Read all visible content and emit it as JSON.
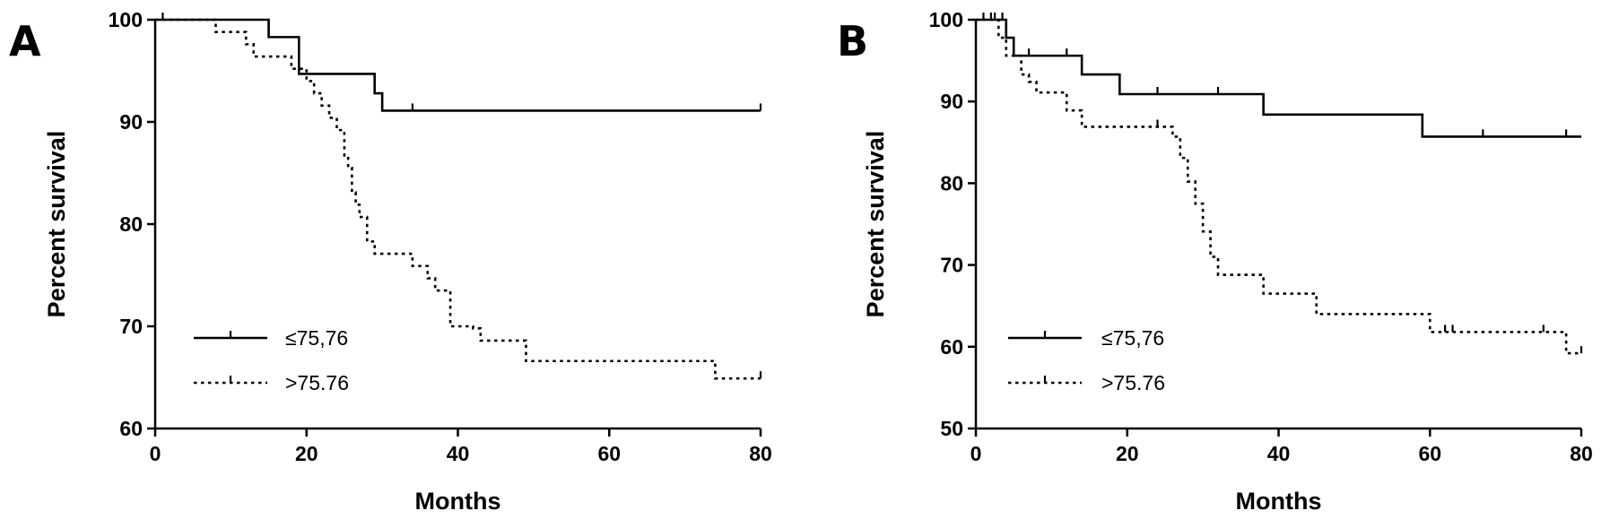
{
  "chart_data": [
    {
      "type": "line",
      "panel_label": "A",
      "xlabel": "Months",
      "ylabel": "Percent survival",
      "xlim": [
        0,
        80
      ],
      "ylim": [
        60,
        100
      ],
      "xticks": [
        0,
        20,
        40,
        60,
        80
      ],
      "yticks": [
        60,
        70,
        80,
        90,
        100
      ],
      "legend_position": "lower-left",
      "series": [
        {
          "name": "≤75,76",
          "line_style": "solid",
          "steps": [
            [
              0,
              100
            ],
            [
              15,
              98.3
            ],
            [
              19,
              94.7
            ],
            [
              29,
              92.8
            ],
            [
              30,
              91.1
            ],
            [
              80,
              91.1
            ]
          ],
          "censored": [
            [
              1,
              100
            ],
            [
              34,
              91.1
            ],
            [
              80,
              91.1
            ]
          ]
        },
        {
          "name": ">75.76",
          "line_style": "dotted",
          "steps": [
            [
              0,
              100
            ],
            [
              8,
              98.8
            ],
            [
              12,
              97.6
            ],
            [
              13,
              96.4
            ],
            [
              18,
              95.2
            ],
            [
              20,
              94.0
            ],
            [
              21,
              92.8
            ],
            [
              22,
              91.6
            ],
            [
              23,
              90.4
            ],
            [
              24,
              89.2
            ],
            [
              25,
              86.7
            ],
            [
              25.5,
              85.5
            ],
            [
              26,
              83.1
            ],
            [
              26.5,
              81.9
            ],
            [
              27,
              80.7
            ],
            [
              28,
              78.3
            ],
            [
              29,
              77.1
            ],
            [
              34,
              75.9
            ],
            [
              36,
              74.7
            ],
            [
              37,
              73.5
            ],
            [
              39,
              70.0
            ],
            [
              42,
              69.8
            ],
            [
              43,
              68.6
            ],
            [
              49,
              66.6
            ],
            [
              74,
              64.9
            ],
            [
              80,
              64.9
            ]
          ],
          "censored": [
            [
              80,
              64.9
            ]
          ]
        }
      ]
    },
    {
      "type": "line",
      "panel_label": "B",
      "xlabel": "Months",
      "ylabel": "Percent survival",
      "xlim": [
        0,
        80
      ],
      "ylim": [
        50,
        100
      ],
      "xticks": [
        0,
        20,
        40,
        60,
        80
      ],
      "yticks": [
        50,
        60,
        70,
        80,
        90,
        100
      ],
      "legend_position": "lower-left",
      "series": [
        {
          "name": "≤75,76",
          "line_style": "solid",
          "steps": [
            [
              0,
              100
            ],
            [
              4,
              97.8
            ],
            [
              5,
              95.6
            ],
            [
              14,
              93.3
            ],
            [
              19,
              90.9
            ],
            [
              38,
              88.4
            ],
            [
              59,
              85.7
            ],
            [
              80,
              85.7
            ]
          ],
          "censored": [
            [
              1,
              100
            ],
            [
              2,
              100
            ],
            [
              2.5,
              100
            ],
            [
              3.5,
              100
            ],
            [
              7,
              95.6
            ],
            [
              12,
              95.6
            ],
            [
              24,
              90.9
            ],
            [
              32,
              90.9
            ],
            [
              67,
              85.7
            ],
            [
              78,
              85.7
            ]
          ]
        },
        {
          "name": ">75.76",
          "line_style": "dotted",
          "steps": [
            [
              0,
              100
            ],
            [
              3,
              97.8
            ],
            [
              4,
              95.6
            ],
            [
              6,
              93.3
            ],
            [
              7,
              92.4
            ],
            [
              8,
              91.1
            ],
            [
              12,
              88.9
            ],
            [
              14,
              86.9
            ],
            [
              26,
              85.7
            ],
            [
              27,
              83.1
            ],
            [
              28,
              80.2
            ],
            [
              29,
              77.5
            ],
            [
              30,
              74.1
            ],
            [
              31,
              71.0
            ],
            [
              32,
              68.8
            ],
            [
              38,
              66.5
            ],
            [
              45,
              64.0
            ],
            [
              60,
              61.8
            ],
            [
              78,
              59.2
            ],
            [
              80,
              59.2
            ]
          ],
          "censored": [
            [
              5,
              95.6
            ],
            [
              24,
              86.9
            ],
            [
              62,
              61.8
            ],
            [
              63,
              61.8
            ],
            [
              75,
              61.8
            ],
            [
              80,
              59.2
            ]
          ]
        }
      ]
    }
  ]
}
